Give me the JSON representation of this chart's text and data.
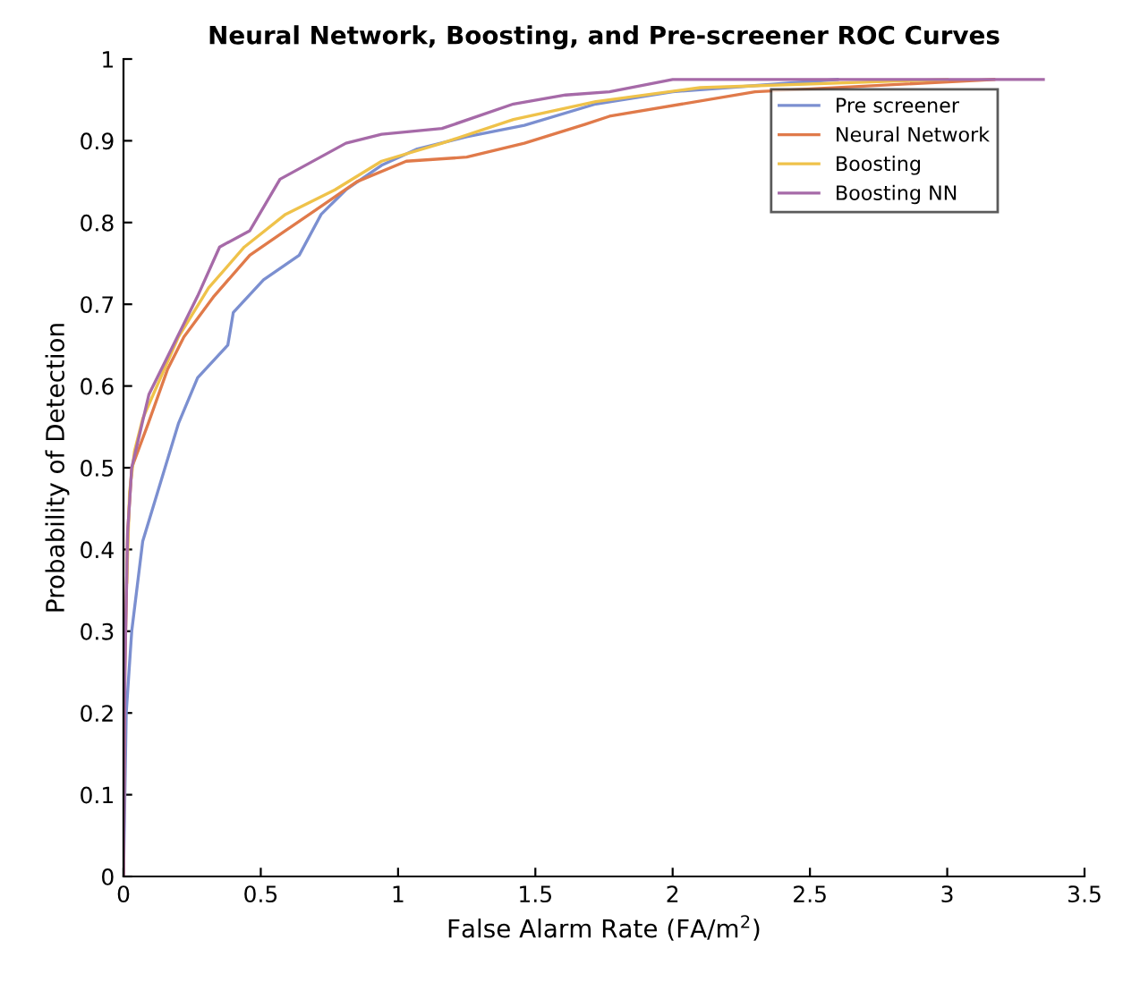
{
  "chart_data": {
    "type": "line",
    "title": "Neural Network, Boosting, and Pre-screener ROC Curves",
    "xlabel": "False Alarm Rate (FA/m$^{2}$)",
    "ylabel": "Probability of Detection",
    "xlim": [
      0,
      3.5
    ],
    "ylim": [
      0,
      1
    ],
    "xticks": [
      0,
      0.5,
      1,
      1.5,
      2,
      2.5,
      3,
      3.5
    ],
    "yticks": [
      0,
      0.1,
      0.2,
      0.3,
      0.4,
      0.5,
      0.6,
      0.7,
      0.8,
      0.9,
      1
    ],
    "grid": false,
    "legend": "top right",
    "line_style": "solid",
    "marker": "none",
    "series": [
      {
        "name": "Pre screener",
        "color": "#7b8fd0",
        "x": [
          0,
          0.01,
          0.03,
          0.07,
          0.2,
          0.27,
          0.38,
          0.4,
          0.51,
          0.64,
          0.72,
          0.81,
          0.94,
          1.07,
          1.25,
          1.46,
          1.72,
          2.0,
          2.2,
          2.6
        ],
        "values": [
          0,
          0.2,
          0.3,
          0.41,
          0.554,
          0.61,
          0.65,
          0.69,
          0.73,
          0.76,
          0.81,
          0.84,
          0.87,
          0.89,
          0.905,
          0.919,
          0.945,
          0.96,
          0.965,
          0.975
        ]
      },
      {
        "name": "Neural Network",
        "color": "#e07a4a",
        "x": [
          0,
          0.005,
          0.015,
          0.03,
          0.09,
          0.16,
          0.22,
          0.33,
          0.46,
          0.59,
          0.72,
          0.85,
          1.03,
          1.25,
          1.46,
          1.68,
          1.77,
          2.3,
          3.17
        ],
        "values": [
          0,
          0.25,
          0.42,
          0.5,
          0.554,
          0.62,
          0.66,
          0.71,
          0.76,
          0.79,
          0.82,
          0.85,
          0.875,
          0.88,
          0.897,
          0.92,
          0.93,
          0.96,
          0.975
        ]
      },
      {
        "name": "Boosting",
        "color": "#efc24a",
        "x": [
          0.012,
          0.022,
          0.04,
          0.07,
          0.2,
          0.31,
          0.44,
          0.59,
          0.77,
          0.94,
          1.16,
          1.42,
          1.72,
          2.1,
          3.0
        ],
        "values": [
          0.36,
          0.47,
          0.52,
          0.56,
          0.66,
          0.72,
          0.77,
          0.81,
          0.84,
          0.875,
          0.897,
          0.926,
          0.948,
          0.965,
          0.975
        ]
      },
      {
        "name": "Boosting NN",
        "color": "#a66aa8",
        "x": [
          0,
          0.005,
          0.015,
          0.03,
          0.093,
          0.27,
          0.35,
          0.46,
          0.57,
          0.81,
          0.94,
          1.16,
          1.42,
          1.61,
          1.77,
          2.0,
          3.35
        ],
        "values": [
          0,
          0.25,
          0.42,
          0.5,
          0.59,
          0.71,
          0.77,
          0.79,
          0.853,
          0.897,
          0.908,
          0.915,
          0.945,
          0.956,
          0.96,
          0.975,
          0.975
        ]
      }
    ]
  }
}
